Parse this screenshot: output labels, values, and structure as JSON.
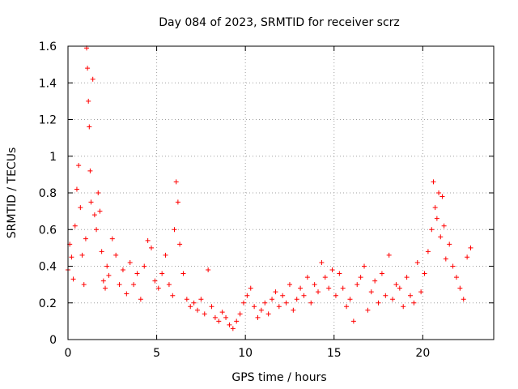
{
  "chart_data": {
    "type": "scatter",
    "title": "Day 084 of 2023, SRMTID for receiver scrz",
    "xlabel": "GPS time / hours",
    "ylabel": "SRMTID / TECUs",
    "xlim": [
      0,
      24
    ],
    "ylim": [
      0,
      1.6
    ],
    "x_ticks": [
      0,
      5,
      10,
      15,
      20
    ],
    "x_tick_labels": [
      "0",
      "5",
      "10",
      "15",
      "20"
    ],
    "y_ticks": [
      0,
      0.2,
      0.4,
      0.6,
      0.8,
      1.0,
      1.2,
      1.4,
      1.6
    ],
    "y_tick_labels": [
      "0",
      "0.2",
      "0.4",
      "0.6",
      "0.8",
      "1",
      "1.2",
      "1.4",
      "1.6"
    ],
    "grid": true,
    "marker": "plus",
    "color": "#ff0000",
    "series": [
      {
        "name": "SRMTID",
        "x": [
          0.0,
          0.1,
          0.2,
          0.3,
          0.4,
          0.5,
          0.6,
          0.7,
          0.8,
          0.9,
          1.0,
          1.05,
          1.1,
          1.15,
          1.2,
          1.25,
          1.3,
          1.4,
          1.5,
          1.6,
          1.7,
          1.8,
          1.9,
          2.0,
          2.1,
          2.2,
          2.3,
          2.5,
          2.7,
          2.9,
          3.1,
          3.3,
          3.5,
          3.7,
          3.9,
          4.1,
          4.3,
          4.5,
          4.7,
          4.9,
          5.1,
          5.3,
          5.5,
          5.7,
          5.9,
          6.0,
          6.1,
          6.2,
          6.3,
          6.5,
          6.7,
          6.9,
          7.1,
          7.3,
          7.5,
          7.7,
          7.9,
          8.1,
          8.3,
          8.5,
          8.7,
          8.9,
          9.1,
          9.3,
          9.5,
          9.7,
          9.9,
          10.1,
          10.3,
          10.5,
          10.7,
          10.9,
          11.1,
          11.3,
          11.5,
          11.7,
          11.9,
          12.1,
          12.3,
          12.5,
          12.7,
          12.9,
          13.1,
          13.3,
          13.5,
          13.7,
          13.9,
          14.1,
          14.3,
          14.5,
          14.7,
          14.9,
          15.1,
          15.3,
          15.5,
          15.7,
          15.9,
          16.1,
          16.3,
          16.5,
          16.7,
          16.9,
          17.1,
          17.3,
          17.5,
          17.7,
          17.9,
          18.1,
          18.3,
          18.5,
          18.7,
          18.9,
          19.1,
          19.3,
          19.5,
          19.7,
          19.9,
          20.1,
          20.3,
          20.5,
          20.6,
          20.7,
          20.8,
          20.9,
          21.0,
          21.1,
          21.2,
          21.3,
          21.5,
          21.7,
          21.9,
          22.1,
          22.3,
          22.5,
          22.7
        ],
        "y": [
          0.38,
          0.52,
          0.45,
          0.33,
          0.62,
          0.82,
          0.95,
          0.72,
          0.46,
          0.3,
          0.55,
          1.59,
          1.48,
          1.3,
          1.16,
          0.92,
          0.75,
          1.42,
          0.68,
          0.6,
          0.8,
          0.7,
          0.48,
          0.32,
          0.28,
          0.4,
          0.35,
          0.55,
          0.46,
          0.3,
          0.38,
          0.25,
          0.42,
          0.3,
          0.36,
          0.22,
          0.4,
          0.54,
          0.5,
          0.32,
          0.28,
          0.36,
          0.46,
          0.3,
          0.24,
          0.6,
          0.86,
          0.75,
          0.52,
          0.36,
          0.22,
          0.18,
          0.2,
          0.16,
          0.22,
          0.14,
          0.38,
          0.18,
          0.12,
          0.1,
          0.15,
          0.12,
          0.08,
          0.06,
          0.1,
          0.14,
          0.2,
          0.24,
          0.28,
          0.18,
          0.12,
          0.16,
          0.2,
          0.14,
          0.22,
          0.26,
          0.18,
          0.24,
          0.2,
          0.3,
          0.16,
          0.22,
          0.28,
          0.24,
          0.34,
          0.2,
          0.3,
          0.26,
          0.42,
          0.34,
          0.28,
          0.38,
          0.24,
          0.36,
          0.28,
          0.18,
          0.22,
          0.1,
          0.3,
          0.34,
          0.4,
          0.16,
          0.26,
          0.32,
          0.2,
          0.36,
          0.24,
          0.46,
          0.22,
          0.3,
          0.28,
          0.18,
          0.34,
          0.24,
          0.2,
          0.42,
          0.26,
          0.36,
          0.48,
          0.6,
          0.86,
          0.72,
          0.66,
          0.8,
          0.56,
          0.78,
          0.62,
          0.44,
          0.52,
          0.4,
          0.34,
          0.28,
          0.22,
          0.45,
          0.5
        ]
      }
    ]
  }
}
